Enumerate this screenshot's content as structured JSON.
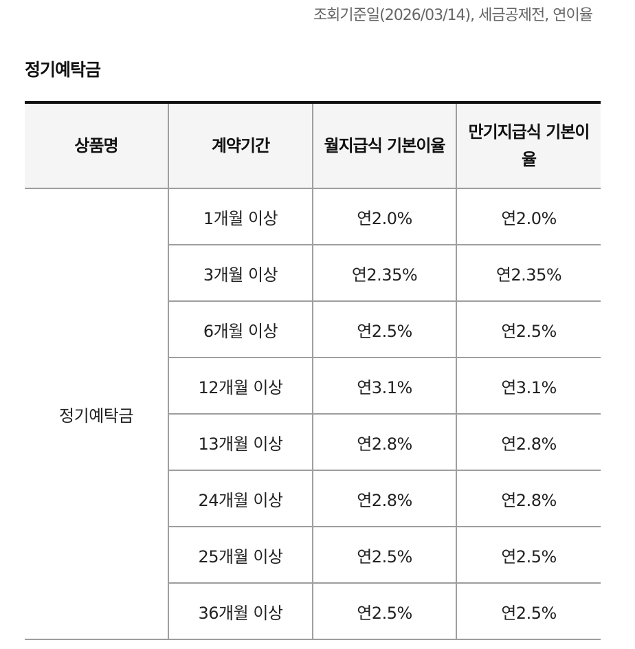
{
  "reference_note": "조회기준일(2026/03/14), 세금공제전, 연이율",
  "section_title": "정기예탁금",
  "table": {
    "headers": [
      "상품명",
      "계약기간",
      "월지급식 기본이율",
      "만기지급식 기본이율"
    ],
    "product_name": "정기예탁금",
    "rows": [
      {
        "period": "1개월 이상",
        "monthly": "연2.0%",
        "maturity": "연2.0%"
      },
      {
        "period": "3개월 이상",
        "monthly": "연2.35%",
        "maturity": "연2.35%"
      },
      {
        "period": "6개월 이상",
        "monthly": "연2.5%",
        "maturity": "연2.5%"
      },
      {
        "period": "12개월 이상",
        "monthly": "연3.1%",
        "maturity": "연3.1%"
      },
      {
        "period": "13개월 이상",
        "monthly": "연2.8%",
        "maturity": "연2.8%"
      },
      {
        "period": "24개월 이상",
        "monthly": "연2.8%",
        "maturity": "연2.8%"
      },
      {
        "period": "25개월 이상",
        "monthly": "연2.5%",
        "maturity": "연2.5%"
      },
      {
        "period": "36개월 이상",
        "monthly": "연2.5%",
        "maturity": "연2.5%"
      }
    ]
  }
}
